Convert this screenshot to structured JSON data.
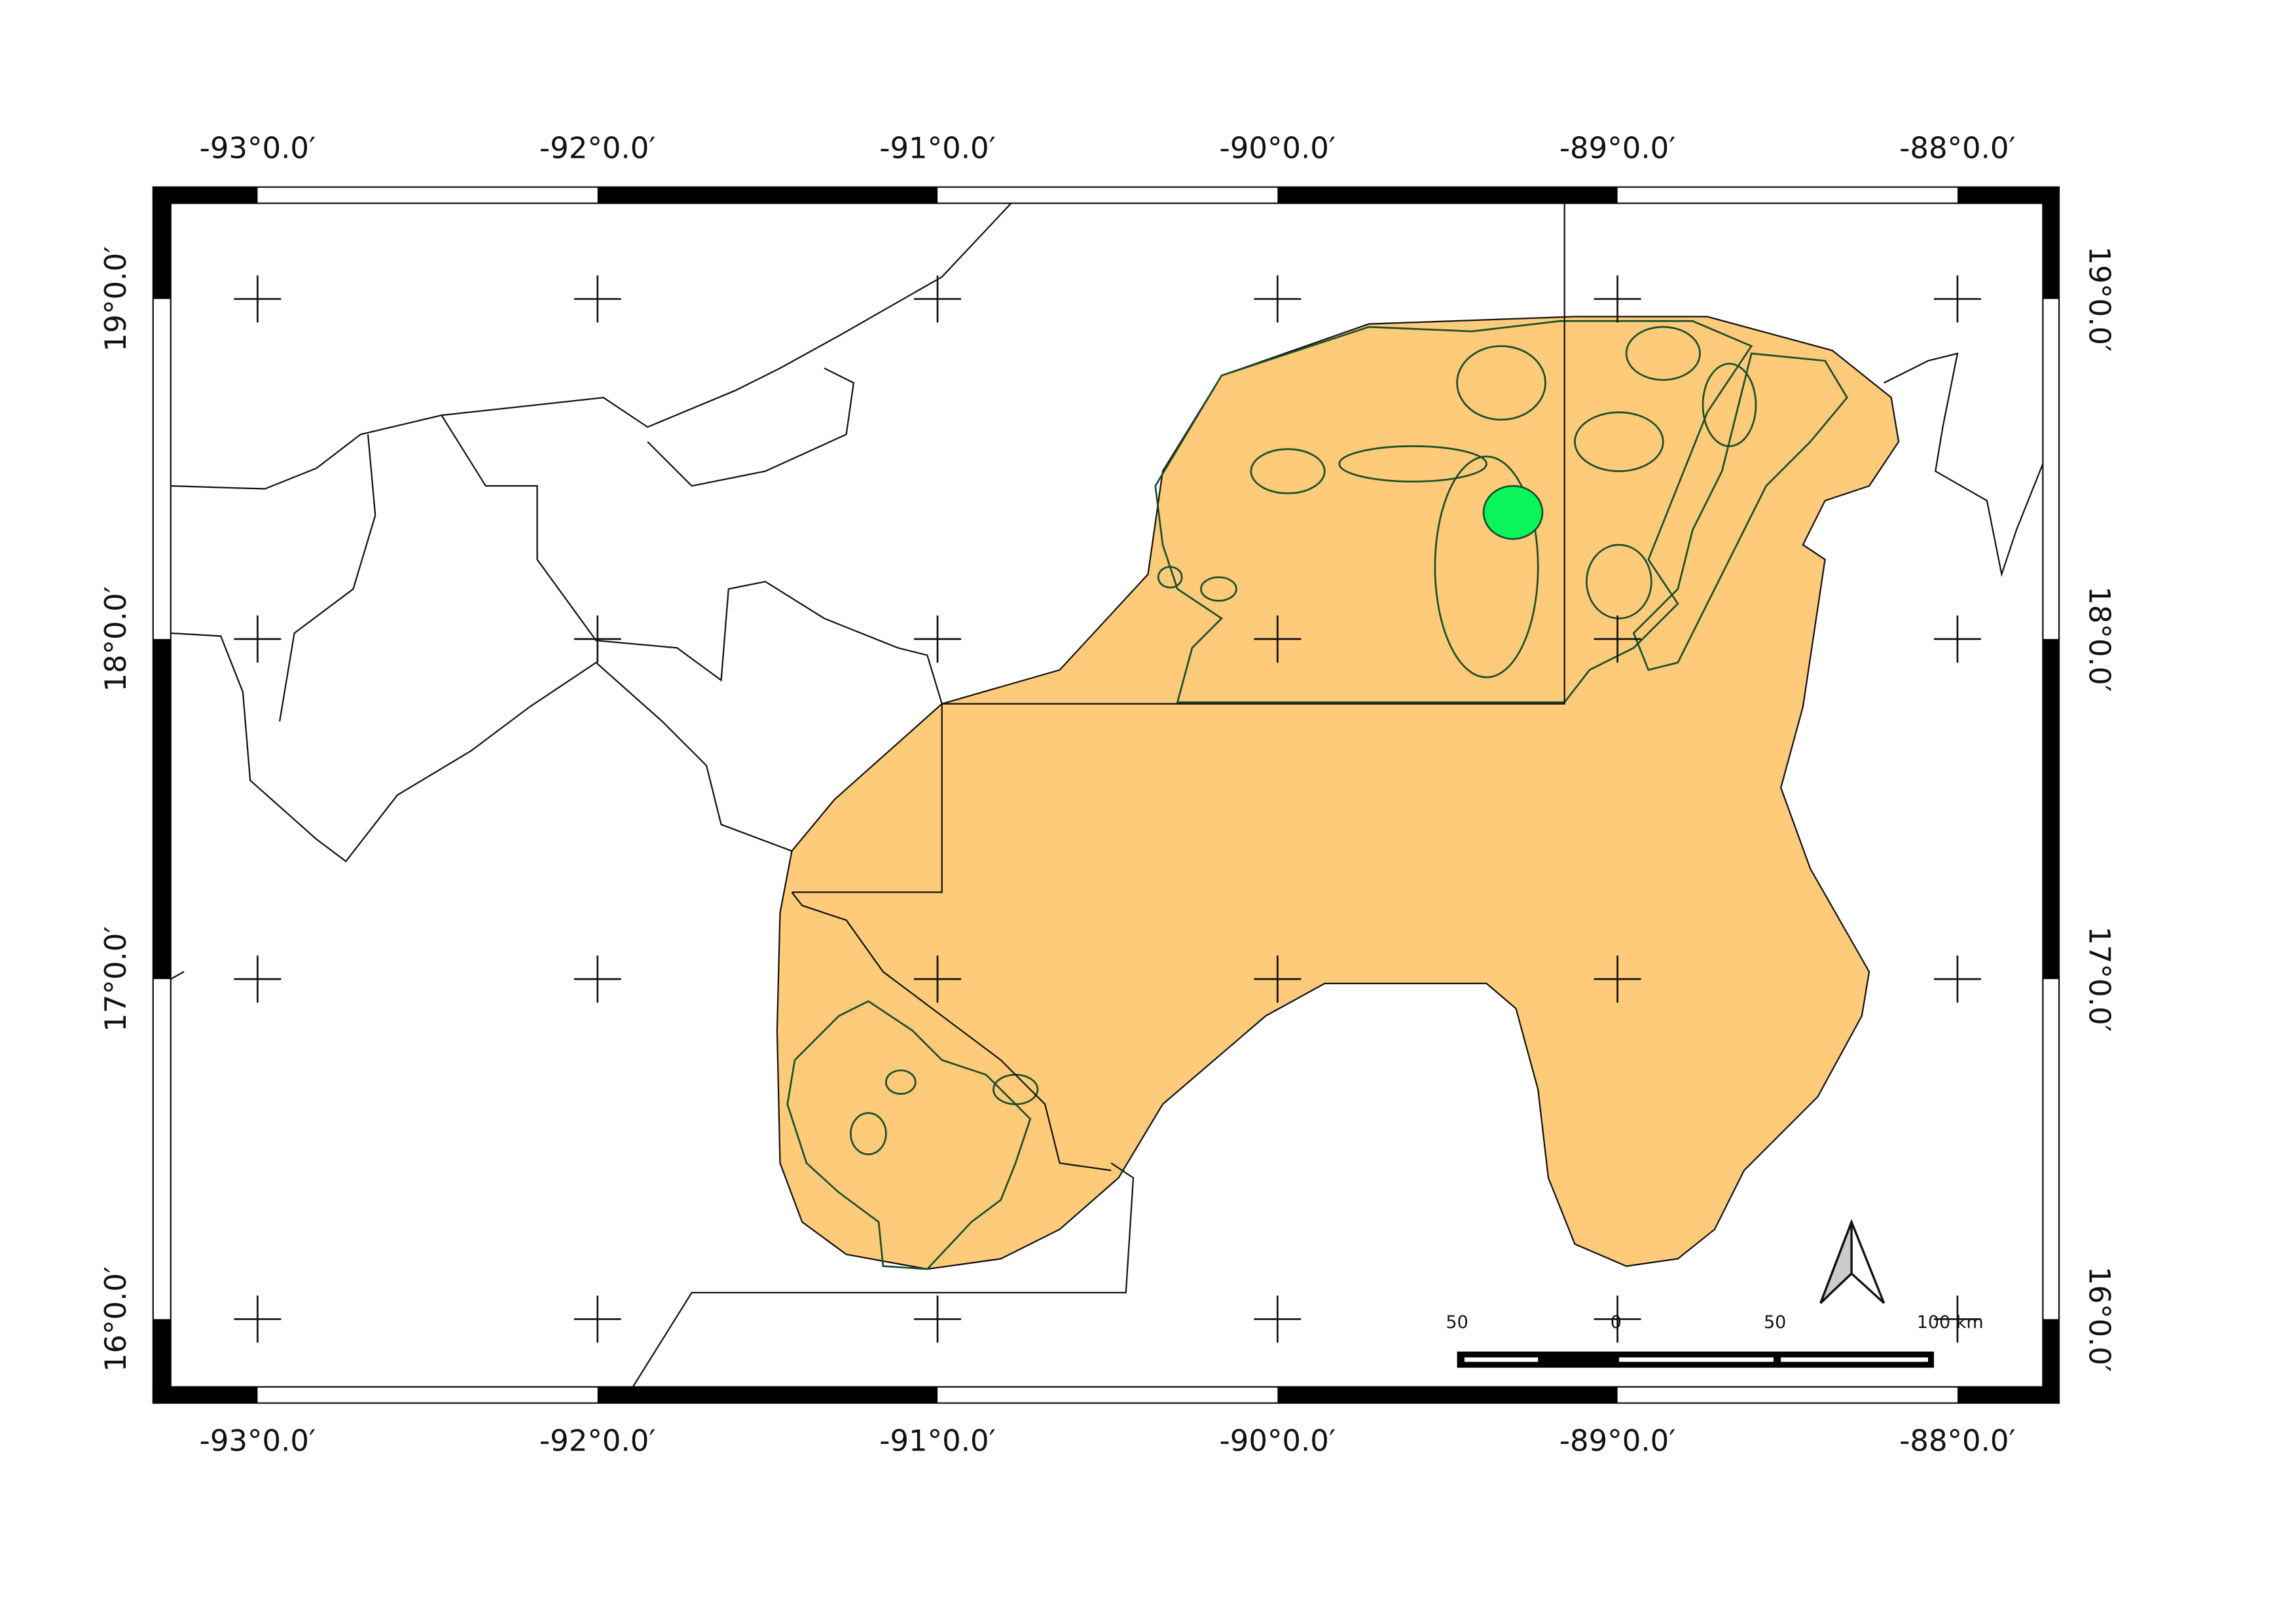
{
  "map": {
    "longitude_labels": [
      "-93°0.0′",
      "-92°0.0′",
      "-91°0.0′",
      "-90°0.0′",
      "-89°0.0′",
      "-88°0.0′"
    ],
    "latitude_labels": [
      "19°0.0′",
      "18°0.0′",
      "17°0.0′",
      "16°0.0′"
    ],
    "scale_labels": [
      "50",
      "0",
      "50",
      "100 km"
    ]
  }
}
